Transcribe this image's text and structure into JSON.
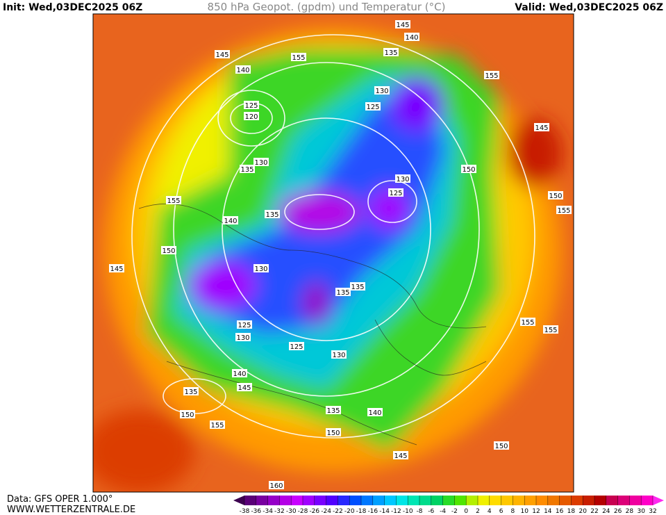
{
  "header": {
    "init": "Init: Wed,03DEC2025 06Z",
    "title": "850 hPa Geopot. (gpdm) und Temperatur (°C)",
    "valid": "Valid: Wed,03DEC2025 06Z"
  },
  "footer": {
    "data": "Data: GFS OPER 1.000°",
    "site": "WWW.WETTERZENTRALE.DE"
  },
  "contour_labels": [
    145,
    140,
    135,
    155,
    145,
    140,
    125,
    120,
    130,
    125,
    155,
    145,
    130,
    135,
    150,
    130,
    125,
    150,
    155,
    155,
    140,
    135,
    150,
    145,
    130,
    135,
    135,
    155,
    155,
    125,
    130,
    125,
    130,
    140,
    145,
    135,
    150,
    155,
    135,
    140,
    150,
    145,
    150,
    160
  ],
  "colorbar": {
    "ticks": [
      -38,
      -36,
      -34,
      -32,
      -30,
      -28,
      -26,
      -24,
      -22,
      -20,
      -18,
      -16,
      -14,
      -12,
      -10,
      -8,
      -6,
      -4,
      -2,
      0,
      2,
      4,
      6,
      8,
      10,
      12,
      14,
      16,
      18,
      20,
      22,
      24,
      26,
      28,
      30,
      32
    ],
    "colors": [
      "#3c0050",
      "#5a0078",
      "#7800a0",
      "#9600c8",
      "#b400e6",
      "#c800ff",
      "#a000ff",
      "#7800ff",
      "#5000ff",
      "#2828ff",
      "#0050ff",
      "#0078ff",
      "#00a0ff",
      "#00c8ff",
      "#00e6e6",
      "#00e6b4",
      "#00dc8c",
      "#00d264",
      "#28dc28",
      "#50e600",
      "#b4f000",
      "#f0f000",
      "#ffdc00",
      "#ffc800",
      "#ffb400",
      "#ffa000",
      "#ff8c00",
      "#f07800",
      "#e65a00",
      "#dc3c00",
      "#c81e00",
      "#b40000",
      "#c80050",
      "#dc0078",
      "#f000a0",
      "#ff00c8",
      "#ff28f0"
    ]
  }
}
